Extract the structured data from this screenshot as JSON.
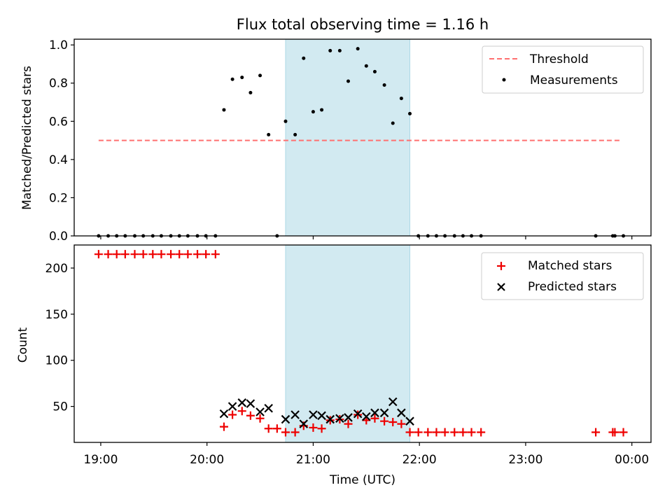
{
  "title": "Flux total observing time = 1.16 h",
  "colors": {
    "threshold": "#ff7070",
    "measurement": "#000000",
    "matched": "#ee0000",
    "predicted": "#000000",
    "shade": "#add8e6"
  },
  "chart_data": [
    {
      "type": "scatter",
      "panel": "top",
      "ylabel": "Matched/Predicted stars",
      "xlim": [
        18.75,
        24.18
      ],
      "ylim": [
        0,
        1.03
      ],
      "yticks": [
        0.0,
        0.2,
        0.4,
        0.6,
        0.8,
        1.0
      ],
      "ytick_labels": [
        "0.0",
        "0.2",
        "0.4",
        "0.6",
        "0.8",
        "1.0"
      ],
      "shaded_interval": [
        20.74,
        21.91
      ],
      "legend": [
        "Threshold",
        "Measurements"
      ],
      "legend_position": "top-right",
      "threshold": {
        "name": "Threshold",
        "value": 0.5,
        "x_range": [
          18.98,
          23.9
        ]
      },
      "series": [
        {
          "name": "Measurements",
          "x": [
            18.98,
            19.07,
            19.15,
            19.23,
            19.32,
            19.4,
            19.49,
            19.57,
            19.66,
            19.74,
            19.82,
            19.91,
            19.99,
            20.08,
            20.16,
            20.24,
            20.33,
            20.41,
            20.5,
            20.58,
            20.66,
            20.74,
            20.83,
            20.91,
            21.0,
            21.08,
            21.16,
            21.25,
            21.33,
            21.42,
            21.5,
            21.58,
            21.67,
            21.75,
            21.83,
            21.91,
            21.99,
            22.08,
            22.16,
            22.24,
            22.33,
            22.41,
            22.49,
            22.58,
            23.66,
            23.82,
            23.84,
            23.92
          ],
          "y": [
            0,
            0,
            0,
            0,
            0,
            0,
            0,
            0,
            0,
            0,
            0,
            0,
            0,
            0,
            0.66,
            0.82,
            0.83,
            0.75,
            0.84,
            0.53,
            0.0,
            0.6,
            0.53,
            0.93,
            0.65,
            0.66,
            0.97,
            0.97,
            0.81,
            0.98,
            0.89,
            0.86,
            0.79,
            0.59,
            0.72,
            0.64,
            0,
            0,
            0,
            0,
            0,
            0,
            0,
            0,
            0,
            0,
            0,
            0
          ]
        }
      ]
    },
    {
      "type": "scatter",
      "panel": "bottom",
      "xlabel": "Time (UTC)",
      "ylabel": "Count",
      "xlim": [
        18.75,
        24.18
      ],
      "ylim": [
        11,
        225
      ],
      "yticks": [
        50,
        100,
        150,
        200
      ],
      "ytick_labels": [
        "50",
        "100",
        "150",
        "200"
      ],
      "xticks": [
        19,
        20,
        21,
        22,
        23,
        24
      ],
      "xtick_labels": [
        "19:00",
        "20:00",
        "21:00",
        "22:00",
        "23:00",
        "00:00"
      ],
      "shaded_interval": [
        20.74,
        21.91
      ],
      "legend": [
        "Matched stars",
        "Predicted stars"
      ],
      "legend_position": "top-right",
      "series": [
        {
          "name": "Matched stars",
          "marker": "plus",
          "x": [
            18.98,
            19.07,
            19.15,
            19.23,
            19.32,
            19.4,
            19.49,
            19.57,
            19.66,
            19.74,
            19.82,
            19.91,
            19.99,
            20.08,
            20.16,
            20.24,
            20.33,
            20.41,
            20.5,
            20.58,
            20.66,
            20.74,
            20.83,
            20.91,
            21.0,
            21.08,
            21.16,
            21.25,
            21.33,
            21.42,
            21.5,
            21.58,
            21.67,
            21.75,
            21.83,
            21.91,
            21.99,
            22.08,
            22.16,
            22.24,
            22.33,
            22.41,
            22.49,
            22.58,
            23.66,
            23.82,
            23.84,
            23.92
          ],
          "y": [
            215,
            215,
            215,
            215,
            215,
            215,
            215,
            215,
            215,
            215,
            215,
            215,
            215,
            215,
            28,
            41,
            45,
            40,
            37,
            26,
            26,
            22,
            22,
            29,
            27,
            26,
            35,
            36,
            31,
            41,
            35,
            37,
            34,
            33,
            31,
            22,
            22,
            22,
            22,
            22,
            22,
            22,
            22,
            22,
            22,
            22,
            22,
            22
          ]
        },
        {
          "name": "Predicted stars",
          "marker": "x",
          "x": [
            20.16,
            20.24,
            20.33,
            20.41,
            20.5,
            20.58,
            20.74,
            20.83,
            20.91,
            21.0,
            21.08,
            21.16,
            21.25,
            21.33,
            21.42,
            21.5,
            21.58,
            21.67,
            21.75,
            21.83,
            21.91
          ],
          "y": [
            42,
            50,
            54,
            53,
            44,
            48,
            36,
            41,
            31,
            41,
            40,
            36,
            37,
            38,
            42,
            39,
            43,
            43,
            55,
            43,
            34
          ]
        }
      ]
    }
  ]
}
